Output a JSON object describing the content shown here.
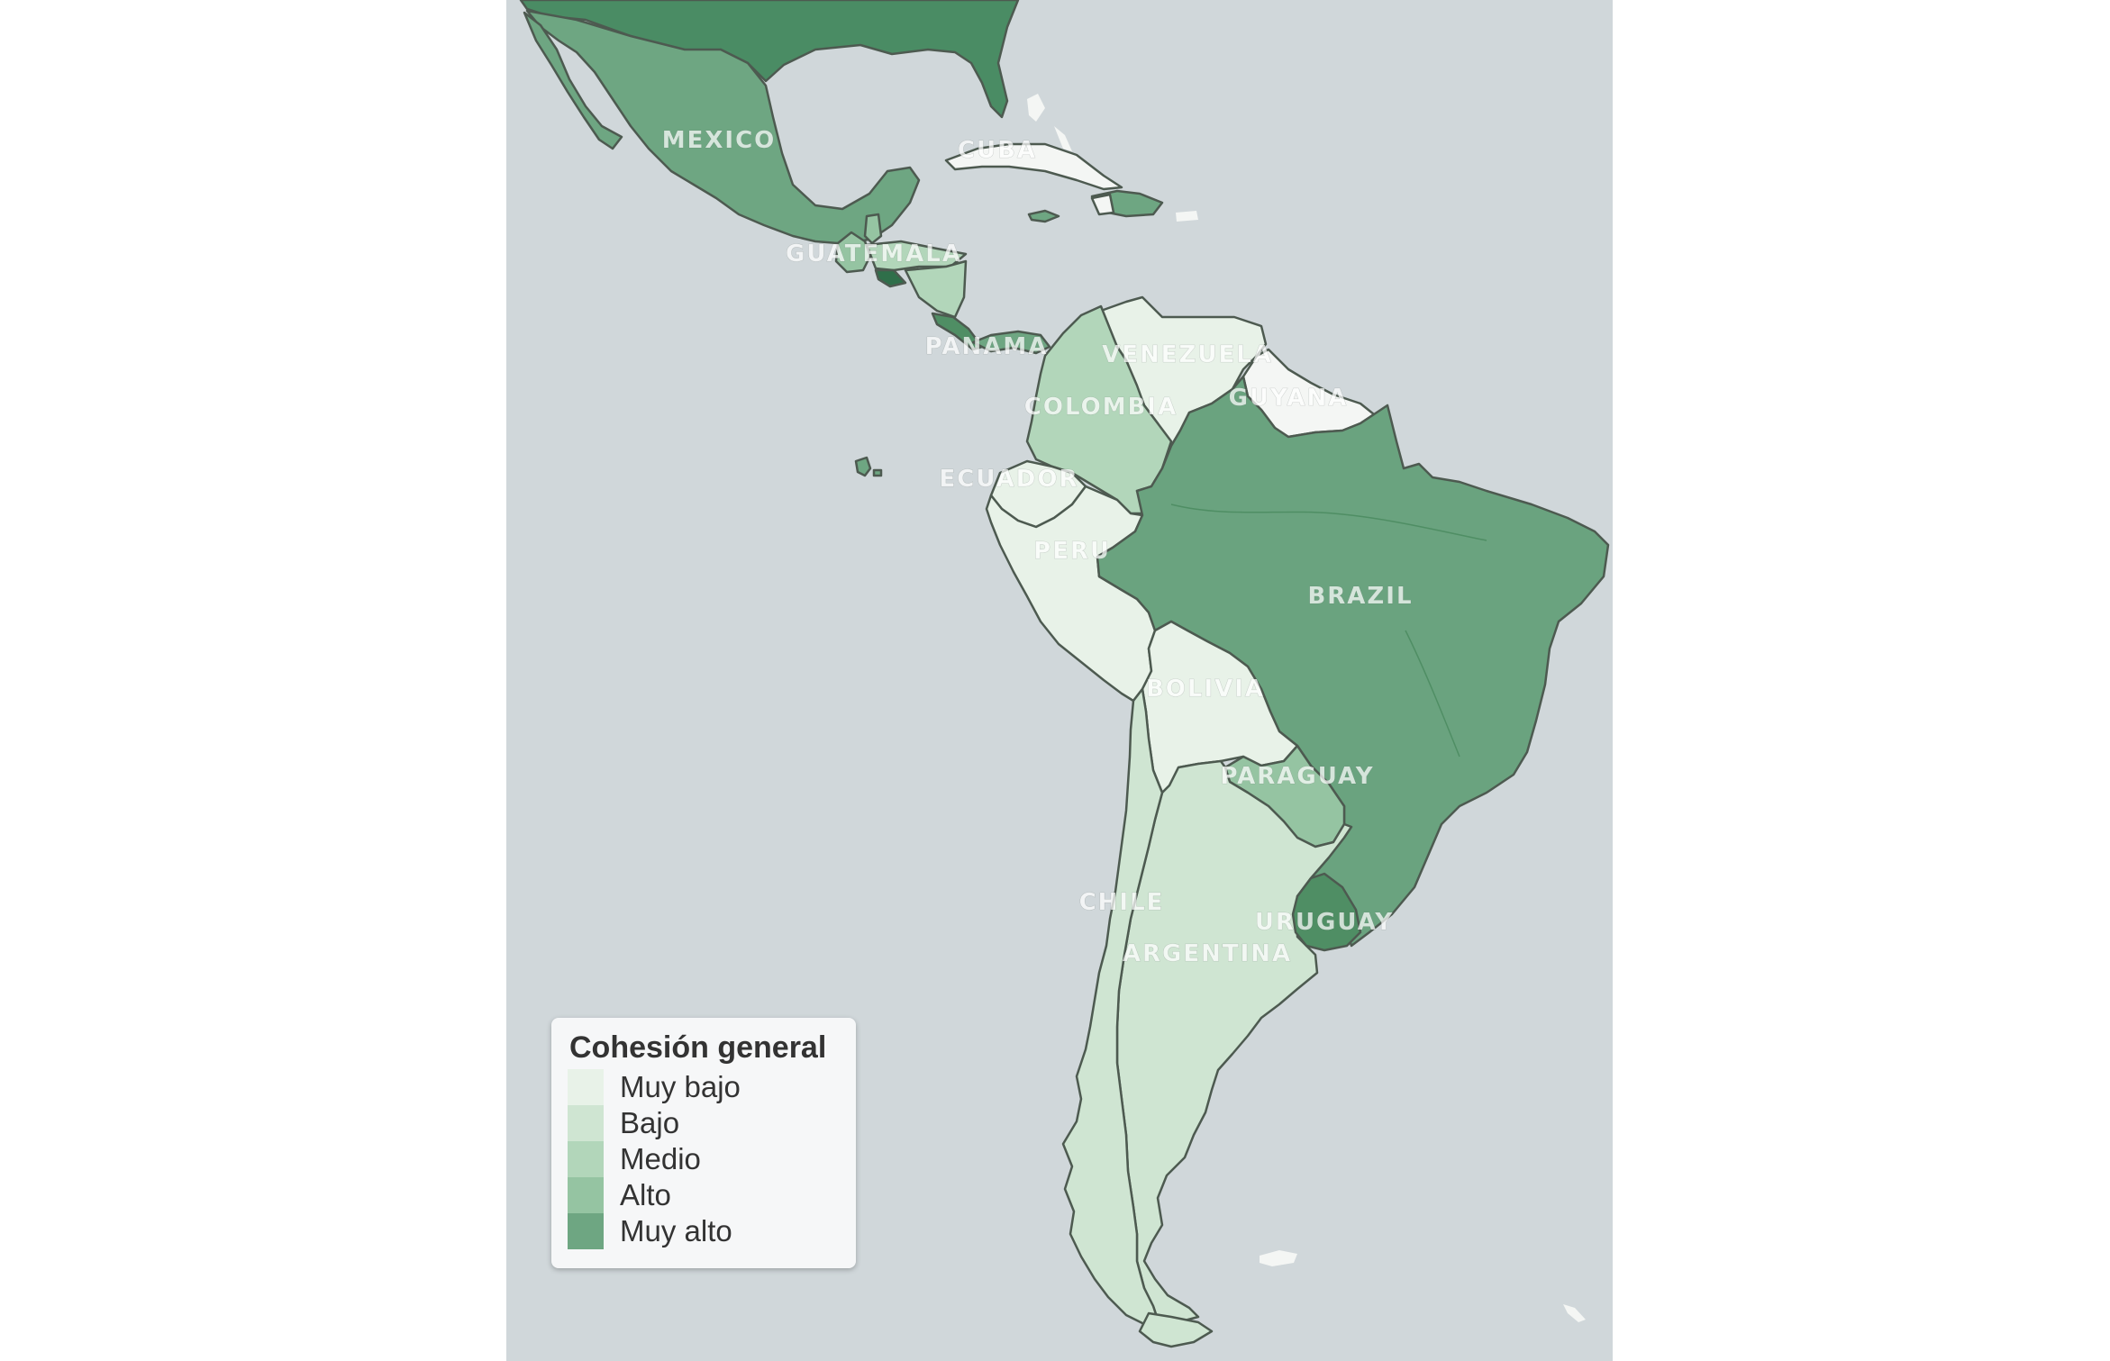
{
  "legend": {
    "title": "Cohesión general",
    "items": [
      {
        "label": "Muy bajo",
        "color": "#e8f2e8"
      },
      {
        "label": "Bajo",
        "color": "#cfe5d2"
      },
      {
        "label": "Medio",
        "color": "#b2d6ba"
      },
      {
        "label": "Alto",
        "color": "#95c4a2"
      },
      {
        "label": "Muy alto",
        "color": "#6ea682"
      }
    ]
  },
  "colors": {
    "ocean": "#d0d7da",
    "page": "#ffffff",
    "usa": "#4a8c64",
    "no_data": "#f4f6f4",
    "muy_bajo": "#e8f2e8",
    "bajo": "#cfe5d2",
    "medio": "#b2d6ba",
    "alto": "#95c4a2",
    "muy_alto": "#6ea682",
    "brazil": "#6aa37f",
    "uruguay": "#4f8e64"
  },
  "countries": [
    {
      "name": "MEXICO",
      "level": "Muy alto"
    },
    {
      "name": "CUBA",
      "level": ""
    },
    {
      "name": "GUATEMALA",
      "level": "Alto"
    },
    {
      "name": "PANAMA",
      "level": "Muy alto"
    },
    {
      "name": "VENEZUELA",
      "level": "Muy bajo"
    },
    {
      "name": "GUYANA",
      "level": ""
    },
    {
      "name": "COLOMBIA",
      "level": "Medio"
    },
    {
      "name": "ECUADOR",
      "level": "Muy bajo"
    },
    {
      "name": "PERU",
      "level": "Muy bajo"
    },
    {
      "name": "BRAZIL",
      "level": "Muy alto"
    },
    {
      "name": "BOLIVIA",
      "level": "Muy bajo"
    },
    {
      "name": "PARAGUAY",
      "level": "Alto"
    },
    {
      "name": "CHILE",
      "level": "Bajo"
    },
    {
      "name": "URUGUAY",
      "level": "Muy alto"
    },
    {
      "name": "ARGENTINA",
      "level": "Bajo"
    }
  ]
}
